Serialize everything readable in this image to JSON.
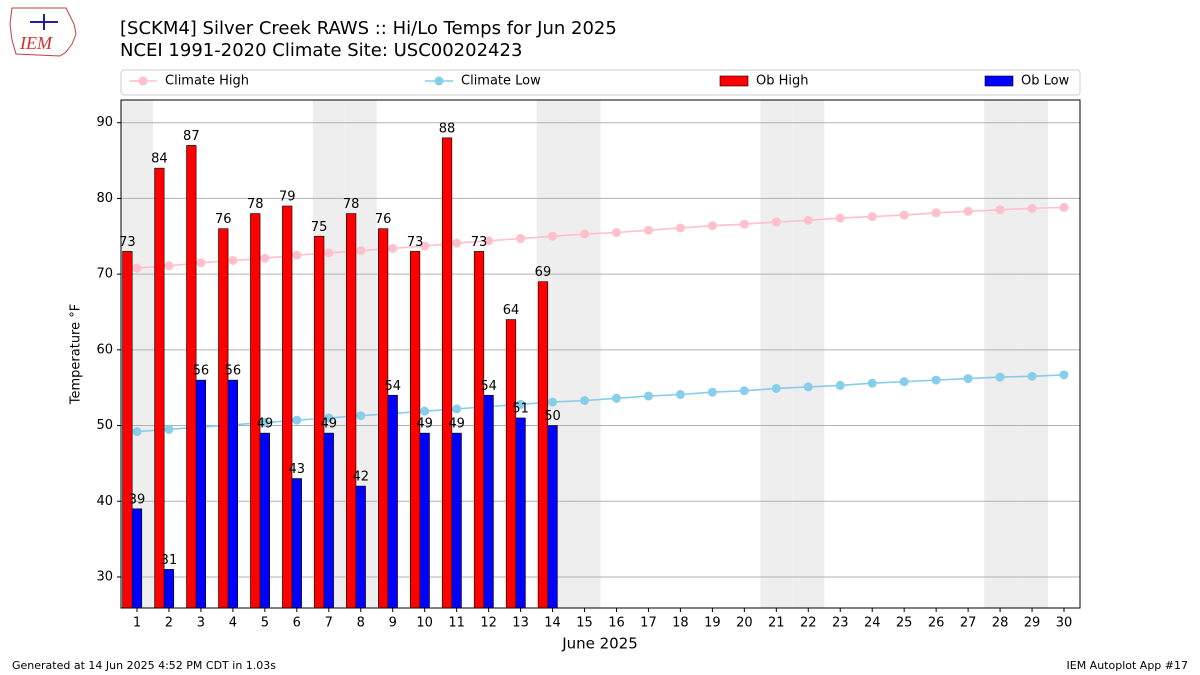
{
  "chart_data": {
    "type": "bar-line",
    "title": "[SCKM4] Silver Creek RAWS :: Hi/Lo Temps for Jun 2025",
    "subtitle": "NCEI 1991-2020 Climate Site: USC00202423",
    "logo": "IEM",
    "x_label": "June 2025",
    "y_label": "Temperature °F",
    "footer_left": "Generated at 14 Jun 2025 4:52 PM CDT in 1.03s",
    "footer_right": "IEM Autoplot App #17",
    "x": [
      1,
      2,
      3,
      4,
      5,
      6,
      7,
      8,
      9,
      10,
      11,
      12,
      13,
      14,
      15,
      16,
      17,
      18,
      19,
      20,
      21,
      22,
      23,
      24,
      25,
      26,
      27,
      28,
      29,
      30
    ],
    "xlim": [
      0.5,
      30.5
    ],
    "ylim": [
      25.9,
      93.0
    ],
    "yticks": [
      30,
      40,
      50,
      60,
      70,
      80,
      90
    ],
    "grid": true,
    "shaded_days": [
      1,
      7,
      8,
      14,
      15,
      21,
      22,
      28,
      29
    ],
    "shade_color": "#eeeeee",
    "legend_position": "top",
    "series": [
      {
        "name": "Climate High",
        "kind": "line",
        "color": "pink",
        "values": [
          70.8,
          71.1,
          71.5,
          71.8,
          72.1,
          72.5,
          72.8,
          73.1,
          73.4,
          73.7,
          74.1,
          74.4,
          74.7,
          75.0,
          75.3,
          75.5,
          75.8,
          76.1,
          76.4,
          76.6,
          76.9,
          77.1,
          77.4,
          77.6,
          77.8,
          78.1,
          78.3,
          78.5,
          78.7,
          78.8
        ]
      },
      {
        "name": "Climate Low",
        "kind": "line",
        "color": "skyblue",
        "values": [
          49.2,
          49.5,
          49.8,
          50.1,
          50.4,
          50.7,
          51.0,
          51.3,
          51.6,
          51.9,
          52.2,
          52.5,
          52.8,
          53.1,
          53.3,
          53.6,
          53.9,
          54.1,
          54.4,
          54.6,
          54.9,
          55.1,
          55.3,
          55.6,
          55.8,
          56.0,
          56.2,
          56.4,
          56.5,
          56.7
        ]
      },
      {
        "name": "Ob High",
        "kind": "bar",
        "color": "#ff0000",
        "values": [
          73,
          84,
          87,
          76,
          78,
          79,
          75,
          78,
          76,
          73,
          88,
          73,
          64,
          69,
          null,
          null,
          null,
          null,
          null,
          null,
          null,
          null,
          null,
          null,
          null,
          null,
          null,
          null,
          null,
          null
        ]
      },
      {
        "name": "Ob Low",
        "kind": "bar",
        "color": "#0000ff",
        "values": [
          39,
          31,
          56,
          56,
          49,
          43,
          49,
          42,
          54,
          49,
          49,
          54,
          51,
          50,
          null,
          null,
          null,
          null,
          null,
          null,
          null,
          null,
          null,
          null,
          null,
          null,
          null,
          null,
          null,
          null
        ]
      }
    ]
  }
}
